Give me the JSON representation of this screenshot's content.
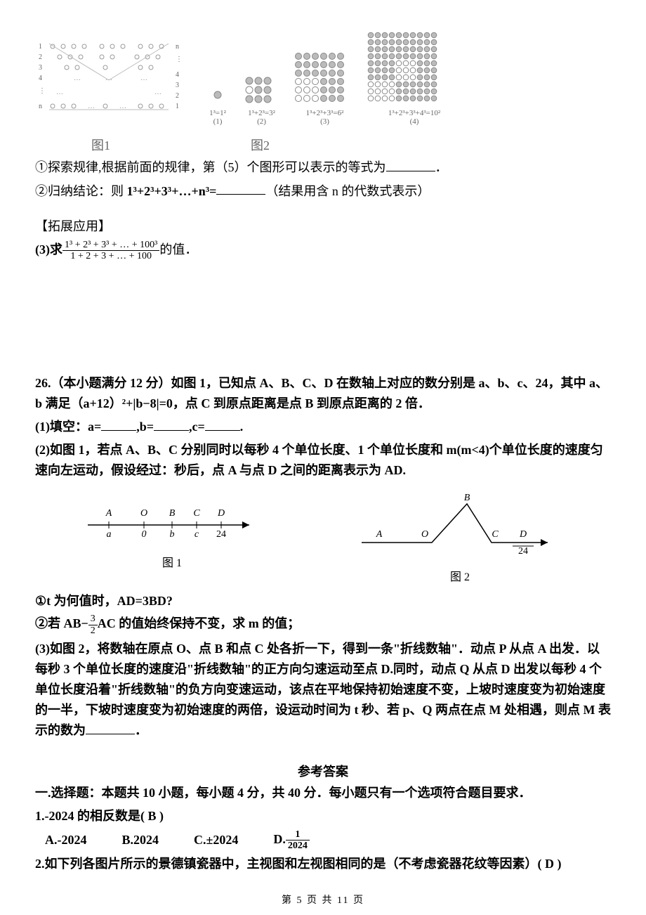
{
  "figures": {
    "fig1": {
      "rows_left": [
        "1",
        "2",
        "3",
        "4",
        "⋮",
        "n"
      ],
      "rows_right": [
        "n",
        "⋮",
        "4",
        "3",
        "2",
        "1"
      ],
      "caption": "图1"
    },
    "fig2": {
      "panels": [
        {
          "label": "1³=1²",
          "sub": "(1)",
          "size": 1,
          "color": "#cccccc"
        },
        {
          "label": "1³+2³=3²",
          "sub": "(2)",
          "size": 3,
          "color": "#cccccc"
        },
        {
          "label": "1³+2³+3³=6²",
          "sub": "(3)",
          "size": 6,
          "color": "#bbbbbb"
        },
        {
          "label": "1³+2³+3³+4³=10²",
          "sub": "(4)",
          "size": 10,
          "color": "#aaaaaa"
        }
      ],
      "caption": "图2"
    }
  },
  "p1": "①探索规律,根据前面的规律，第（5）个图形可以表示的等式为",
  "p1_end": "．",
  "p2a": "②归纳结论：则 ",
  "p2b": "1³+2³+3³+…+n³=",
  "p2c": "（结果用含  n  的代数式表示）",
  "ext_title": "【拓展应用】",
  "p3_prefix": "(3)求",
  "p3_frac_num": "1³ + 2³ + 3³ + … + 100³",
  "p3_frac_den": "1 + 2 + 3 + … + 100",
  "p3_suffix": "的值．",
  "q26_stem1": "26.（本小题满分 12 分）如图 1，已知点 A、B、C、D 在数轴上对应的数分别是 a、b、c、24，其中 a、b 满足（a+12）²+|b−8|=0，点 C 到原点距离是点 B 到原点距离的 2 倍．",
  "q26_1a": "(1)填空：a=",
  "q26_1b": ",b=",
  "q26_1c": ",c=",
  "q26_1d": ".",
  "q26_2": "(2)如图 1，若点 A、B、C 分别同时以每秒 4 个单位长度、1 个单位长度和 m(m<4)个单位长度的速度匀速向左运动，假设经过：秒后，点 A 与点 D 之间的距离表示为 AD.",
  "axis1": {
    "labels_top": [
      "A",
      "O",
      "B",
      "C",
      "D"
    ],
    "labels_bot": [
      "a",
      "0",
      "b",
      "c",
      "24"
    ],
    "caption": "图 1"
  },
  "axis2": {
    "labels": [
      "A",
      "O",
      "B",
      "C",
      "D"
    ],
    "label_d_bot": "24",
    "caption": "图 2"
  },
  "q26_sub1": "①t 为何值时，AD=3BD?",
  "q26_sub2_a": "②若 AB−",
  "q26_sub2_frac_num": "3",
  "q26_sub2_frac_den": "2",
  "q26_sub2_b": "AC 的值始终保持不变，求 m 的值；",
  "q26_3": "(3)如图 2，将数轴在原点 O、点 B 和点 C 处各折一下，得到一条\"折线数轴\"．动点 P 从点 A 出发．以每秒 3 个单位长度的速度沿\"折线数轴\"的正方向匀速运动至点 D.同时，动点 Q 从点 D 出发以每秒 4 个单位长度沿着\"折线数轴\"的负方向变速运动，该点在平地保持初始速度不变，上坡时速度变为初始速度的一半，下坡时速度变为初始速度的两倍，设运动时间为 t 秒、若 p、Q 两点在点 M 处相遇，则点 M 表示的数为",
  "q26_3_end": "．",
  "answers_title": "参考答案",
  "ans_head": "一.选择题：本题共 10 小题，每小题 4 分，共 40 分．每小题只有一个选项符合题目要求．",
  "ans1": {
    "stem": "1.-2024 的相反数是(   B   )",
    "A": "A.-2024",
    "B": "B.2024",
    "C": "C.±2024",
    "D_prefix": "D.",
    "D_num": "1",
    "D_den": "2024"
  },
  "ans2": "2.如下列各图片所示的景德镇瓷器中，主视图和左视图相同的是（不考虑瓷器花纹等因素）(   D   )",
  "pagenum": "第  5  页  共  11  页"
}
